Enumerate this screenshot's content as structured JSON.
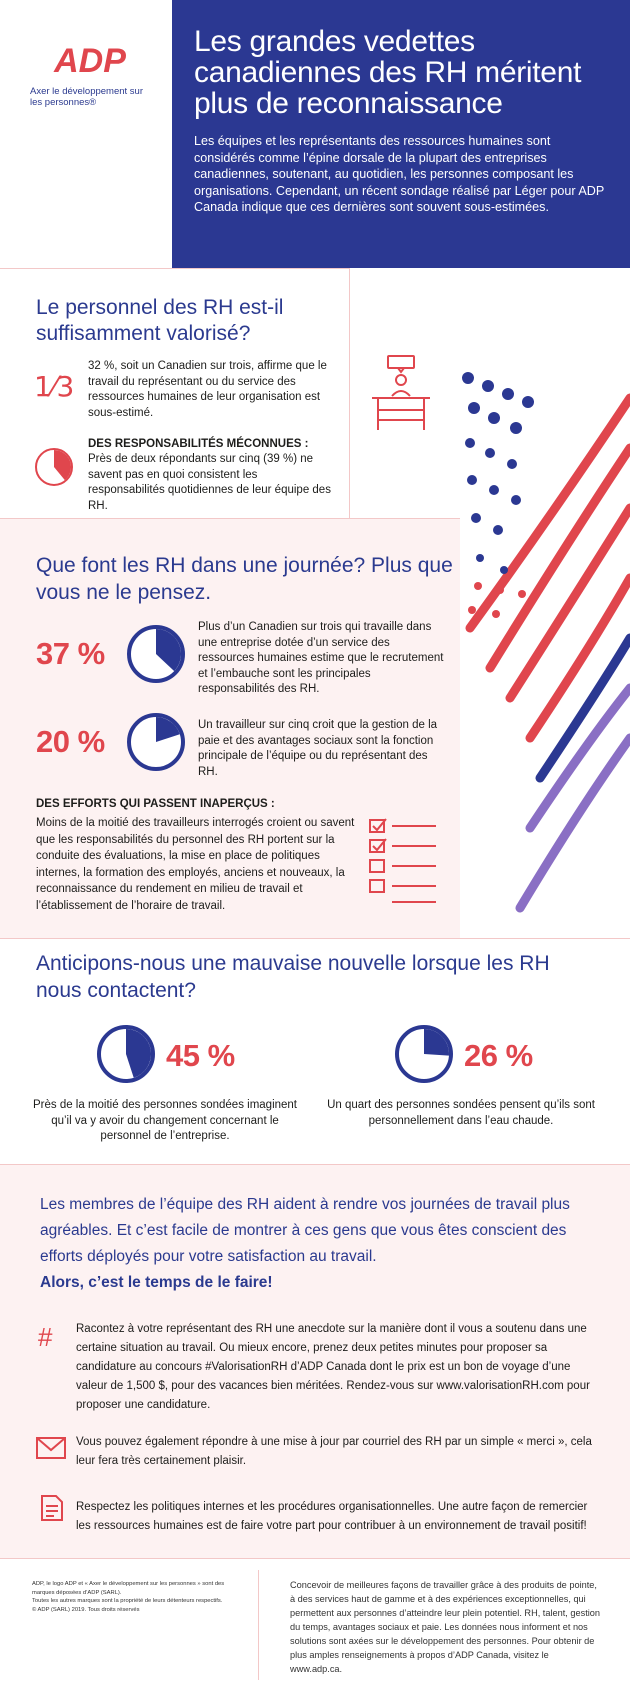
{
  "brand": {
    "logo_text": "ADP",
    "tagline": "Axer le développement sur les personnes®",
    "colors": {
      "navy": "#2b3892",
      "red": "#e0464d",
      "pink_bg": "#fdf2f2",
      "purple": "#8a6fc4"
    }
  },
  "header": {
    "title": "Les grandes vedettes canadiennes des RH méritent plus de reconnaissance",
    "intro": "Les équipes et les représentants des ressources humaines sont considérés comme l’épine dorsale de la plupart des entreprises canadiennes, soutenant, au quotidien, les personnes composant les organisations. Cependant, un récent sondage réalisé par Léger pour ADP Canada indique que ces dernières sont souvent sous-estimées."
  },
  "section1": {
    "title": "Le personnel des RH est-il suffisamment valorisé?",
    "fraction_icon": "1⁄3",
    "stat1_text": "32 %, soit un Canadien sur trois, affirme que le travail du représentant ou du service des ressources humaines de leur organisation est sous-estimé.",
    "stat2_heading": "DES RESPONSABILITÉS MÉCONNUES :",
    "stat2_text": "Près de deux répondants sur cinq (39 %) ne savent pas en quoi consistent les responsabilités quotidiennes de leur équipe des RH.",
    "pie_value": 39,
    "icons": [
      "pie-chart-icon",
      "desk-meeting-icon"
    ]
  },
  "section2": {
    "title": "Que font les RH dans une journée? Plus que vous ne le pensez.",
    "stats": [
      {
        "value": 37,
        "label": "37 %",
        "text": "Plus d’un Canadien sur trois qui travaille dans une entreprise dotée d’un service des ressources humaines estime que le recrutement et l’embauche sont les principales responsabilités des RH."
      },
      {
        "value": 20,
        "label": "20 %",
        "text": "Un travailleur sur cinq croit que la gestion de la paie et des avantages sociaux sont la fonction principale de l’équipe ou du représentant des RH."
      }
    ],
    "efforts_heading": "DES EFFORTS QUI PASSENT INAPERÇUS :",
    "efforts_text": "Moins de la moitié des travailleurs interrogés croient ou savent que les responsabilités du personnel des RH portent sur la conduite des évaluations, la mise en place de politiques internes, la formation des employés, anciens et nouveaux, la reconnaissance du rendement en milieu de travail et l’établissement de l’horaire de travail.",
    "icons": [
      "checklist-icon"
    ]
  },
  "section3": {
    "title": "Anticipons-nous une mauvaise nouvelle lorsque les RH nous contactent?",
    "stats": [
      {
        "value": 45,
        "label": "45 %",
        "text": "Près de la moitié des personnes sondées imaginent qu’il va y avoir du changement concernant le personnel de l’entreprise."
      },
      {
        "value": 26,
        "label": "26 %",
        "text": "Un quart des personnes sondées pensent qu’ils sont personnellement dans l’eau chaude."
      }
    ]
  },
  "section4": {
    "lead": "Les membres de l’équipe des RH aident à rendre vos journées de travail plus agréables. Et c’est facile de montrer à ces gens que vous êtes conscient des efforts déployés pour votre satisfaction au travail.",
    "cta": "Alors, c’est le temps de le faire!",
    "tips": [
      {
        "icon": "hashtag-icon",
        "glyph": "#",
        "text": "Racontez à votre représentant des RH une anecdote sur la manière dont il vous a soutenu dans une certaine situation au travail. Ou mieux encore, prenez deux petites minutes pour proposer sa candidature au concours #ValorisationRH d’ADP Canada dont le prix est un bon de voyage d’une valeur de 1,500 $, pour des vacances bien méritées. Rendez-vous sur www.valorisationRH.com pour proposer une candidature."
      },
      {
        "icon": "envelope-icon",
        "text": "Vous pouvez également répondre à une mise à jour par courriel des RH par un simple « merci », cela leur fera très certainement plaisir."
      },
      {
        "icon": "document-icon",
        "text": "Respectez les politiques internes et les procédures organisationnelles. Une autre façon de remercier les ressources humaines est de faire votre part pour contribuer à un environnement de travail positif!"
      }
    ]
  },
  "footer": {
    "legal_lines": [
      "ADP, le logo ADP et « Axer le développement sur les personnes » sont des",
      "marques déposées d’ADP (SARL).",
      "Toutes les autres marques sont la propriété de leurs détenteurs respectifs.",
      "© ADP (SARL) 2019. Tous droits réservés"
    ],
    "about": "Concevoir de meilleures façons de travailler grâce à des produits de pointe, à des services haut de gamme et à des expériences exceptionnelles, qui permettent aux personnes d’atteindre leur plein potentiel. RH, talent, gestion du temps, avantages sociaux et paie. Les données nous informent et nos solutions sont axées sur le développement des personnes. Pour obtenir de plus amples renseignements à propos d’ADP Canada, visitez le www.adp.ca."
  }
}
